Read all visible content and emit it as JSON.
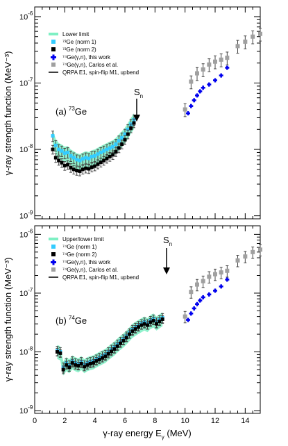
{
  "chart_data": [
    {
      "type": "scatter",
      "panel_label": "(a)",
      "isotope_mass": "73",
      "isotope_symbol": "Ge",
      "xlim": [
        0,
        15
      ],
      "ylim": [
        9e-10,
        1.4e-06
      ],
      "yscale": "log",
      "ylabel": "γ-ray strength function (MeV⁻³)",
      "xlabel": "",
      "legend": [
        {
          "label": "Lower limit",
          "style": "band",
          "color": "#7ef0c4"
        },
        {
          "label": "⁷³Ge (norm 1)",
          "style": "square",
          "color": "#33ccff"
        },
        {
          "label": "⁷³Ge (norm 2)",
          "style": "square",
          "color": "#000000"
        },
        {
          "label": "⁷⁴Ge(γ,n), this work",
          "style": "cross",
          "color": "#0000ee"
        },
        {
          "label": "⁷⁴Ge(γ,n), Carlos et al.",
          "style": "square",
          "color": "#a0a0a0"
        },
        {
          "label": "QRPA E1, spin-flip M1, upbend",
          "style": "line",
          "color": "#000000"
        }
      ],
      "annotation": {
        "text": "S",
        "subscript": "n",
        "x": 6.8
      },
      "series": [
        {
          "name": "⁷³Ge (norm 1)",
          "x": [
            1.2,
            1.4,
            1.6,
            1.8,
            2.0,
            2.2,
            2.4,
            2.6,
            2.8,
            3.0,
            3.2,
            3.4,
            3.6,
            3.8,
            4.0,
            4.2,
            4.4,
            4.6,
            4.8,
            5.0,
            5.2,
            5.4,
            5.6,
            5.8,
            6.0,
            6.2,
            6.4,
            6.6
          ],
          "y": [
            1.6e-08,
            1.15e-08,
            1e-08,
            9.5e-09,
            8.8e-09,
            9e-09,
            8e-09,
            7.5e-09,
            7e-09,
            6.8e-09,
            7.2e-09,
            7.5e-09,
            7.3e-09,
            7.8e-09,
            8e-09,
            8.5e-09,
            9e-09,
            9.5e-09,
            1e-08,
            1.05e-08,
            1.1e-08,
            1.2e-08,
            1.35e-08,
            1.5e-08,
            1.7e-08,
            2e-08,
            2.4e-08,
            2.8e-08
          ]
        },
        {
          "name": "⁷³Ge (norm 2)",
          "x": [
            1.2,
            1.4,
            1.6,
            1.8,
            2.0,
            2.2,
            2.4,
            2.6,
            2.8,
            3.0,
            3.2,
            3.4,
            3.6,
            3.8,
            4.0,
            4.2,
            4.4,
            4.6,
            4.8,
            5.0,
            5.2,
            5.4,
            5.6,
            5.8,
            6.0,
            6.2,
            6.4,
            6.6
          ],
          "y": [
            1e-08,
            7.5e-09,
            6.8e-09,
            6.3e-09,
            5.7e-09,
            5.9e-09,
            5.3e-09,
            5e-09,
            4.8e-09,
            4.7e-09,
            5e-09,
            5.2e-09,
            5.1e-09,
            5.4e-09,
            5.6e-09,
            6e-09,
            6.4e-09,
            6.8e-09,
            7.3e-09,
            7.8e-09,
            8.3e-09,
            9.2e-09,
            1.05e-08,
            1.2e-08,
            1.4e-08,
            1.7e-08,
            2.1e-08,
            2.5e-08
          ]
        },
        {
          "name": "⁷⁴Ge(γ,n), this work",
          "x": [
            10.2,
            10.4,
            10.6,
            10.8,
            11.0,
            11.2,
            11.6,
            12.0,
            12.4,
            12.8
          ],
          "y": [
            3.5e-08,
            4.5e-08,
            5.5e-08,
            6.5e-08,
            7.5e-08,
            8.5e-08,
            9.5e-08,
            1.1e-07,
            1.3e-07,
            1.7e-07
          ]
        },
        {
          "name": "⁷⁴Ge(γ,n), Carlos et al.",
          "x": [
            10.0,
            10.4,
            10.8,
            11.2,
            11.6,
            12.0,
            12.4,
            12.8,
            13.5,
            14.0,
            14.5,
            15.0
          ],
          "y": [
            4e-08,
            1.05e-07,
            1.4e-07,
            1.6e-07,
            1.9e-07,
            2.1e-07,
            2.25e-07,
            2.4e-07,
            3.6e-07,
            4.2e-07,
            5e-07,
            5.5e-07
          ]
        }
      ]
    },
    {
      "type": "scatter",
      "panel_label": "(b)",
      "isotope_mass": "74",
      "isotope_symbol": "Ge",
      "xlim": [
        0,
        15
      ],
      "ylim": [
        9e-10,
        1.4e-06
      ],
      "yscale": "log",
      "ylabel": "γ-ray strength function (MeV⁻³)",
      "xlabel": "γ-ray energy E",
      "xlabel_subscript": "γ",
      "xlabel_unit": " (MeV)",
      "xticks": [
        "0",
        "2",
        "4",
        "6",
        "8",
        "10",
        "12",
        "14"
      ],
      "legend": [
        {
          "label": "Upper/lower limit",
          "style": "band",
          "color": "#7ef0c4"
        },
        {
          "label": "⁷⁴Ge (norm 1)",
          "style": "square",
          "color": "#33ccff"
        },
        {
          "label": "⁷⁴Ge (norm 2)",
          "style": "square",
          "color": "#000000"
        },
        {
          "label": "⁷⁴Ge(γ,n), this work",
          "style": "cross",
          "color": "#0000ee"
        },
        {
          "label": "⁷⁴Ge(γ,n), Carlos et al.",
          "style": "square",
          "color": "#a0a0a0"
        },
        {
          "label": "QRPA E1, spin-flip M1, upbend",
          "style": "line",
          "color": "#000000"
        }
      ],
      "annotation": {
        "text": "S",
        "subscript": "n",
        "x": 10.2
      },
      "series": [
        {
          "name": "⁷⁴Ge (norm 1)",
          "x": [
            1.5,
            1.7,
            1.9,
            2.1,
            2.3,
            2.5,
            2.7,
            2.9,
            3.1,
            3.3,
            3.5,
            3.7,
            3.9,
            4.1,
            4.3,
            4.5,
            4.7,
            4.9,
            5.1,
            5.3,
            5.5,
            5.7,
            5.9,
            6.1,
            6.3,
            6.5,
            6.7,
            6.9,
            7.1,
            7.3,
            7.5,
            7.7,
            7.9,
            8.1,
            8.3,
            8.5
          ],
          "y": [
            1.05e-08,
            1e-08,
            5.5e-09,
            6.5e-09,
            6e-09,
            7e-09,
            6.5e-09,
            6.2e-09,
            6.8e-09,
            6e-09,
            6.5e-09,
            6.8e-09,
            7e-09,
            7.5e-09,
            8e-09,
            8.5e-09,
            9e-09,
            1e-08,
            1.1e-08,
            1.2e-08,
            1.35e-08,
            1.5e-08,
            1.65e-08,
            1.85e-08,
            2.1e-08,
            2.4e-08,
            2.6e-08,
            2.8e-08,
            3e-08,
            3.2e-08,
            3e-08,
            3.4e-08,
            3.6e-08,
            3.2e-08,
            3.5e-08,
            3.8e-08
          ]
        },
        {
          "name": "⁷⁴Ge (norm 2)",
          "x": [
            1.5,
            1.7,
            1.9,
            2.1,
            2.3,
            2.5,
            2.7,
            2.9,
            3.1,
            3.3,
            3.5,
            3.7,
            3.9,
            4.1,
            4.3,
            4.5,
            4.7,
            4.9,
            5.1,
            5.3,
            5.5,
            5.7,
            5.9,
            6.1,
            6.3,
            6.5,
            6.7,
            6.9,
            7.1,
            7.3,
            7.5,
            7.7,
            7.9,
            8.1,
            8.3,
            8.5
          ],
          "y": [
            1e-08,
            9.5e-09,
            5e-09,
            6e-09,
            5.5e-09,
            6.5e-09,
            6e-09,
            5.8e-09,
            6.3e-09,
            5.6e-09,
            6e-09,
            6.3e-09,
            6.5e-09,
            7e-09,
            7.4e-09,
            7.9e-09,
            8.4e-09,
            9.3e-09,
            1.02e-08,
            1.12e-08,
            1.25e-08,
            1.4e-08,
            1.55e-08,
            1.75e-08,
            2e-08,
            2.25e-08,
            2.45e-08,
            2.65e-08,
            2.85e-08,
            3e-08,
            2.85e-08,
            3.2e-08,
            3.4e-08,
            3e-08,
            3.3e-08,
            3.6e-08
          ]
        },
        {
          "name": "⁷⁴Ge(γ,n), this work",
          "x": [
            10.2,
            10.4,
            10.6,
            10.8,
            11.0,
            11.2,
            11.6,
            12.0,
            12.4,
            12.8
          ],
          "y": [
            3.5e-08,
            4.5e-08,
            5.5e-08,
            6.5e-08,
            7.5e-08,
            8.5e-08,
            9.5e-08,
            1.1e-07,
            1.3e-07,
            1.7e-07
          ]
        },
        {
          "name": "⁷⁴Ge(γ,n), Carlos et al.",
          "x": [
            10.0,
            10.4,
            10.8,
            11.2,
            11.6,
            12.0,
            12.4,
            12.8,
            13.5,
            14.0,
            14.5,
            15.0
          ],
          "y": [
            4e-08,
            1.05e-07,
            1.4e-07,
            1.6e-07,
            1.9e-07,
            2.1e-07,
            2.25e-07,
            2.4e-07,
            3.6e-07,
            4.2e-07,
            5e-07,
            5.5e-07
          ]
        }
      ]
    }
  ],
  "y_tick_labels": [
    {
      "base": "10",
      "exp": "-9"
    },
    {
      "base": "10",
      "exp": "-8"
    },
    {
      "base": "10",
      "exp": "-7"
    },
    {
      "base": "10",
      "exp": "-6"
    }
  ]
}
